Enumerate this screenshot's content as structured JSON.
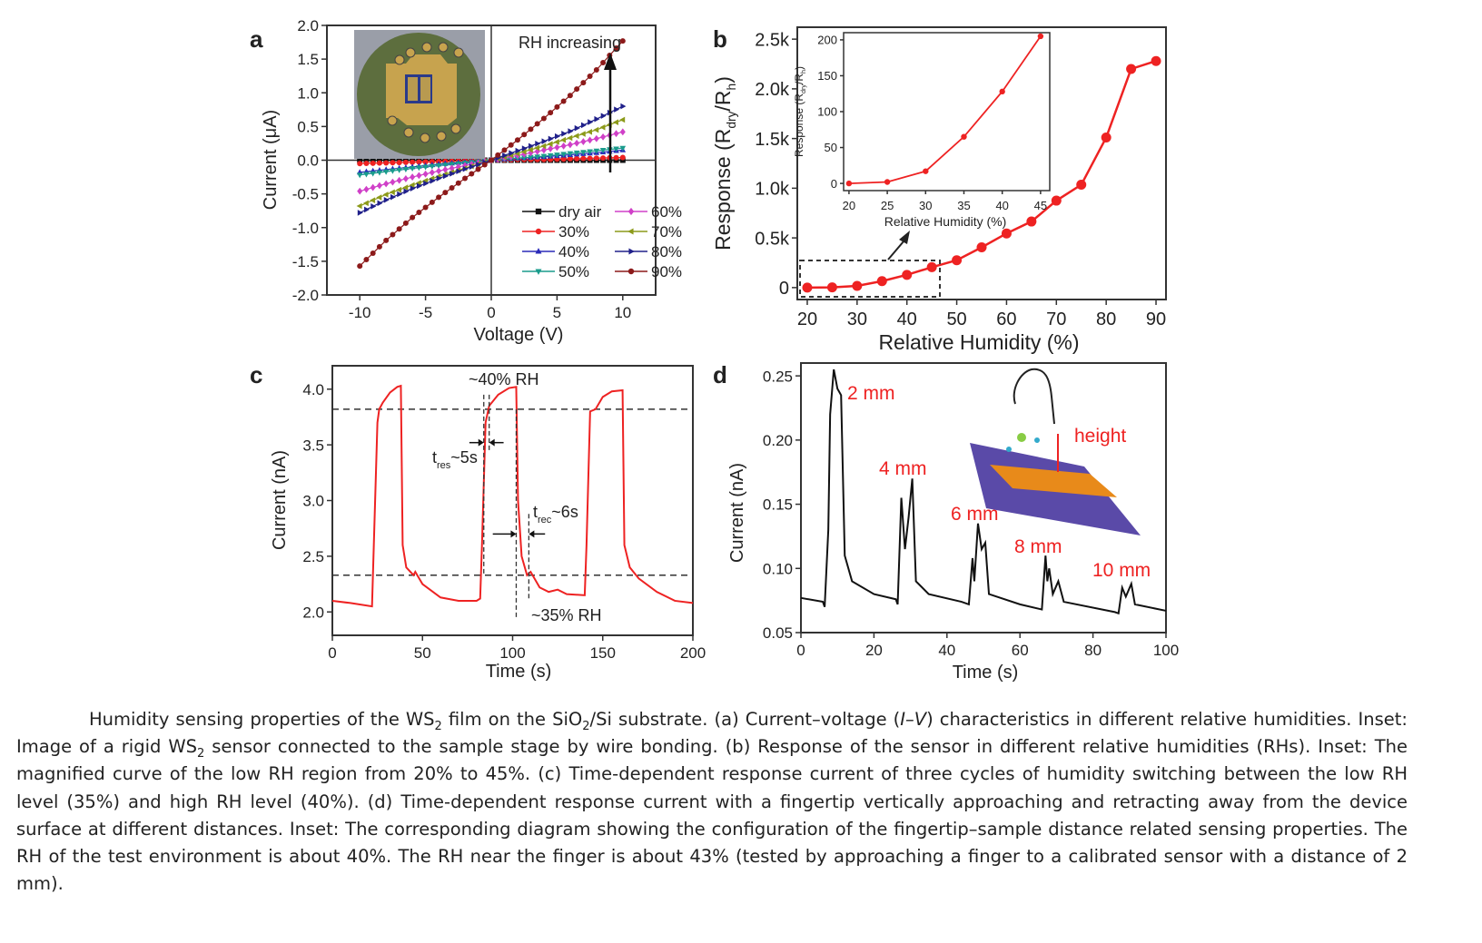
{
  "chart_data": [
    {
      "panel": "a",
      "type": "scatter",
      "xlabel": "Voltage (V)",
      "ylabel": "Current (μA)",
      "xlim": [
        -12.5,
        12.5
      ],
      "ylim": [
        -2.0,
        2.0
      ],
      "xticks": [
        -10,
        -5,
        0,
        5,
        10
      ],
      "yticks": [
        -2.0,
        -1.5,
        -1.0,
        -0.5,
        0.0,
        0.5,
        1.0,
        1.5,
        2.0
      ],
      "annotation": "RH increasing",
      "inset": "photo of sensor on sample stage",
      "legend_placement": "bottom-right",
      "x": [
        -10,
        -8,
        -6,
        -4,
        -2,
        0,
        2,
        4,
        6,
        8,
        10
      ],
      "series": [
        {
          "name": "dry air",
          "color": "#111111",
          "marker": "square",
          "values": [
            0,
            0,
            0,
            0,
            0,
            0,
            0,
            0,
            0,
            0,
            0
          ]
        },
        {
          "name": "30%",
          "color": "#ee2222",
          "marker": "circle",
          "values": [
            -0.05,
            -0.04,
            -0.03,
            -0.02,
            -0.01,
            0,
            0.01,
            0.01,
            0.02,
            0.03,
            0.04
          ]
        },
        {
          "name": "40%",
          "color": "#2a2ab8",
          "marker": "triangle-up",
          "values": [
            -0.18,
            -0.14,
            -0.1,
            -0.06,
            -0.03,
            0,
            0.03,
            0.05,
            0.08,
            0.11,
            0.15
          ]
        },
        {
          "name": "50%",
          "color": "#1a9c8c",
          "marker": "triangle-down",
          "values": [
            -0.22,
            -0.17,
            -0.12,
            -0.08,
            -0.04,
            0,
            0.03,
            0.06,
            0.1,
            0.14,
            0.18
          ]
        },
        {
          "name": "60%",
          "color": "#d040c8",
          "marker": "diamond",
          "values": [
            -0.46,
            -0.35,
            -0.25,
            -0.16,
            -0.08,
            0,
            0.07,
            0.15,
            0.23,
            0.32,
            0.42
          ]
        },
        {
          "name": "70%",
          "color": "#8c9a1a",
          "marker": "triangle-left",
          "values": [
            -0.68,
            -0.51,
            -0.37,
            -0.24,
            -0.12,
            0,
            0.1,
            0.21,
            0.33,
            0.45,
            0.6
          ]
        },
        {
          "name": "80%",
          "color": "#20208a",
          "marker": "triangle-right",
          "values": [
            -0.78,
            -0.59,
            -0.42,
            -0.27,
            -0.13,
            0,
            0.14,
            0.28,
            0.43,
            0.61,
            0.8
          ]
        },
        {
          "name": "90%",
          "color": "#8c1a1a",
          "marker": "circle",
          "values": [
            -1.57,
            -1.19,
            -0.85,
            -0.55,
            -0.27,
            0,
            0.3,
            0.62,
            0.96,
            1.34,
            1.77
          ]
        }
      ]
    },
    {
      "panel": "b",
      "type": "line",
      "xlabel": "Relative Humidity (%)",
      "ylabel": "Response (R_dry/R_h)",
      "xlim": [
        18,
        92
      ],
      "ylim": [
        -120,
        2620
      ],
      "xticks": [
        20,
        30,
        40,
        50,
        60,
        70,
        80,
        90
      ],
      "yticks": [
        0,
        500,
        1000,
        1500,
        2000,
        2500
      ],
      "ytick_labels": [
        "0",
        "0.5k",
        "1.0k",
        "1.5k",
        "2.0k",
        "2.5k"
      ],
      "color": "#ee2222",
      "x": [
        20,
        25,
        30,
        35,
        40,
        45,
        50,
        55,
        60,
        65,
        70,
        75,
        80,
        85,
        90
      ],
      "values": [
        0,
        2,
        17,
        65,
        128,
        205,
        275,
        405,
        545,
        665,
        875,
        1035,
        1510,
        2200,
        2280
      ],
      "inset": {
        "xlabel": "Relative Humidity (%)",
        "ylabel": "Response (R_dry/R_h)",
        "xlim": [
          19.3,
          46.2
        ],
        "ylim": [
          -10,
          210
        ],
        "xticks": [
          20,
          25,
          30,
          35,
          40,
          45
        ],
        "yticks": [
          0,
          50,
          100,
          150,
          200
        ],
        "x": [
          20,
          25,
          30,
          35,
          40,
          45
        ],
        "values": [
          0,
          2,
          17,
          65,
          128,
          205
        ]
      }
    },
    {
      "panel": "c",
      "type": "line",
      "xlabel": "Time (s)",
      "ylabel": "Current (nA)",
      "xlim": [
        0,
        200
      ],
      "ylim": [
        1.79,
        4.21
      ],
      "xticks": [
        0,
        50,
        100,
        150,
        200
      ],
      "yticks": [
        2.0,
        2.5,
        3.0,
        3.5,
        4.0
      ],
      "color": "#ee2222",
      "reference_lines": [
        3.82,
        2.33
      ],
      "annotations": {
        "high": "~40% RH",
        "low": "~35% RH",
        "tres": "~5s",
        "trec": "~6s",
        "tres_sub": "res",
        "trec_sub": "rec",
        "t": "t"
      },
      "points": [
        [
          0,
          2.1
        ],
        [
          10,
          2.08
        ],
        [
          22,
          2.05
        ],
        [
          23,
          2.6
        ],
        [
          25,
          3.7
        ],
        [
          26,
          3.82
        ],
        [
          28,
          3.88
        ],
        [
          32,
          3.97
        ],
        [
          36,
          4.02
        ],
        [
          38,
          4.03
        ],
        [
          39,
          2.6
        ],
        [
          41,
          2.4
        ],
        [
          45,
          2.33
        ],
        [
          46,
          2.36
        ],
        [
          50,
          2.25
        ],
        [
          60,
          2.13
        ],
        [
          70,
          2.1
        ],
        [
          80,
          2.1
        ],
        [
          82,
          2.12
        ],
        [
          83,
          2.6
        ],
        [
          85,
          3.7
        ],
        [
          87,
          3.85
        ],
        [
          92,
          3.95
        ],
        [
          98,
          4.01
        ],
        [
          102,
          4.02
        ],
        [
          103,
          3.0
        ],
        [
          105,
          2.5
        ],
        [
          108,
          2.33
        ],
        [
          110,
          2.36
        ],
        [
          115,
          2.22
        ],
        [
          120,
          2.18
        ],
        [
          125,
          2.2
        ],
        [
          130,
          2.16
        ],
        [
          140,
          2.15
        ],
        [
          141,
          2.6
        ],
        [
          143,
          3.8
        ],
        [
          146,
          3.82
        ],
        [
          150,
          3.93
        ],
        [
          155,
          3.98
        ],
        [
          161,
          3.99
        ],
        [
          162,
          2.6
        ],
        [
          165,
          2.4
        ],
        [
          170,
          2.3
        ],
        [
          180,
          2.18
        ],
        [
          190,
          2.1
        ],
        [
          200,
          2.08
        ]
      ]
    },
    {
      "panel": "d",
      "type": "line",
      "xlabel": "Time (s)",
      "ylabel": "Current (nA)",
      "xlim": [
        0,
        100
      ],
      "ylim": [
        0.05,
        0.26
      ],
      "xticks": [
        0,
        20,
        40,
        60,
        80,
        100
      ],
      "yticks": [
        0.05,
        0.1,
        0.15,
        0.2,
        0.25
      ],
      "color": "#111111",
      "annotations": [
        "2 mm",
        "4 mm",
        "6 mm",
        "8 mm",
        "10 mm"
      ],
      "inset_label": "height",
      "label_color": "#ee2222",
      "points": [
        [
          0,
          0.077
        ],
        [
          6,
          0.074
        ],
        [
          6.5,
          0.07
        ],
        [
          7.5,
          0.13
        ],
        [
          8,
          0.22
        ],
        [
          9,
          0.255
        ],
        [
          10,
          0.24
        ],
        [
          11,
          0.235
        ],
        [
          12,
          0.11
        ],
        [
          14,
          0.09
        ],
        [
          20,
          0.08
        ],
        [
          26,
          0.076
        ],
        [
          26.5,
          0.072
        ],
        [
          27.5,
          0.155
        ],
        [
          28.5,
          0.115
        ],
        [
          29.5,
          0.14
        ],
        [
          30.5,
          0.17
        ],
        [
          31.5,
          0.09
        ],
        [
          35,
          0.08
        ],
        [
          44,
          0.074
        ],
        [
          46,
          0.072
        ],
        [
          47,
          0.108
        ],
        [
          47.5,
          0.09
        ],
        [
          48.5,
          0.135
        ],
        [
          49.5,
          0.115
        ],
        [
          50.5,
          0.12
        ],
        [
          51.5,
          0.08
        ],
        [
          60,
          0.072
        ],
        [
          66,
          0.068
        ],
        [
          67,
          0.11
        ],
        [
          67.5,
          0.09
        ],
        [
          68,
          0.1
        ],
        [
          69,
          0.08
        ],
        [
          70.5,
          0.09
        ],
        [
          72,
          0.074
        ],
        [
          86,
          0.066
        ],
        [
          87,
          0.065
        ],
        [
          88,
          0.085
        ],
        [
          89,
          0.078
        ],
        [
          90.5,
          0.088
        ],
        [
          91.5,
          0.072
        ],
        [
          100,
          0.067
        ]
      ]
    }
  ],
  "panel_labels": [
    "a",
    "b",
    "c",
    "d"
  ],
  "caption": {
    "p0": "Humidity sensing properties of the WS",
    "s0": "2",
    "p1": " film on the SiO",
    "s1": "2",
    "p2": "/Si substrate. (a) Current–voltage (",
    "i0": "I–V",
    "p3": ") characteristics in different relative humidities. Inset: Image of a rigid WS",
    "s2": "2",
    "p4": " sensor connected to the sample stage by wire bonding. (b) Response of the sensor in different relative humidities (RHs). Inset: The magnified curve of the low RH region from 20% to 45%. (c) Time-dependent response current of three cycles of humidity switching between the low RH level (35%) and high RH level (40%). (d) Time-dependent response current with a fingertip vertically approaching and retracting away from the device surface at different distances. Inset: The corresponding diagram showing the configuration of the fingertip–sample distance related sensing properties. The RH of the test environment is about 40%. The RH near the finger is about 43% (tested by approaching a finger to a calibrated sensor with a distance of 2 mm)."
  }
}
